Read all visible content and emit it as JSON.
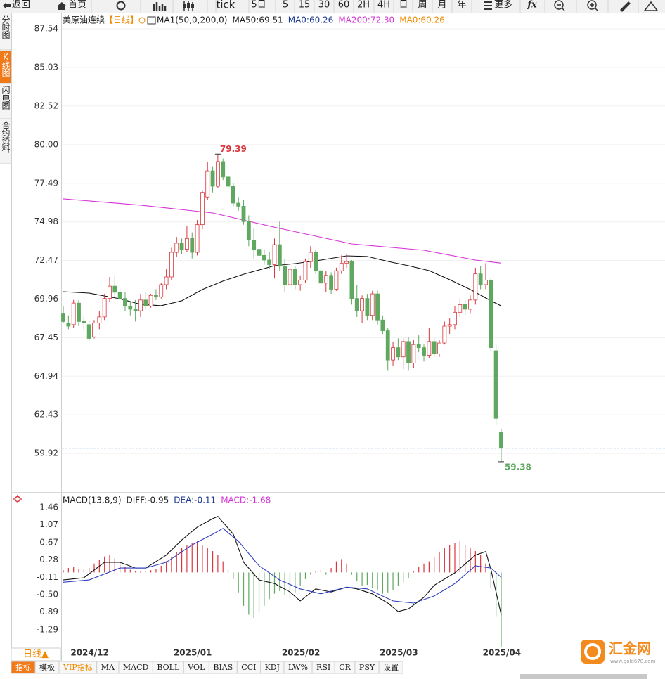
{
  "toolbar": {
    "back": "返回",
    "home": "首页",
    "periods": [
      "tick",
      "5日",
      "5",
      "15",
      "30",
      "60",
      "2H",
      "4H",
      "日",
      "周",
      "月",
      "年"
    ],
    "more": "更多",
    "fx": "fx"
  },
  "sidebar": [
    "分时图",
    "K线图",
    "闪电图",
    "合约资料"
  ],
  "chart_data": [
    {
      "type": "candlestick",
      "title": "美原油连续",
      "period": "【日线】",
      "legend": [
        {
          "text": "MA1(50,0,200,0)",
          "color": "#222222"
        },
        {
          "text": "MA50:69.51",
          "color": "#222222"
        },
        {
          "text": "MA0:60.26",
          "color": "#1f3a93"
        },
        {
          "text": "MA200:72.30",
          "color": "#d633d6"
        },
        {
          "text": "MA0:60.26",
          "color": "#f08a00"
        }
      ],
      "up_color": "#d9363e",
      "down_color": "#5fa85f",
      "up_hollow": true,
      "last_color": "#3b7fbf",
      "candles": [
        [
          69.0,
          69.5,
          68.4,
          68.5
        ],
        [
          68.4,
          68.9,
          68.0,
          68.2
        ],
        [
          68.3,
          69.9,
          68.1,
          69.7
        ],
        [
          69.7,
          69.9,
          68.2,
          68.5
        ],
        [
          68.5,
          68.9,
          67.9,
          68.4
        ],
        [
          68.3,
          68.6,
          67.2,
          67.4
        ],
        [
          67.5,
          68.6,
          67.4,
          68.4
        ],
        [
          68.4,
          69.2,
          68.0,
          68.8
        ],
        [
          68.8,
          70.3,
          68.6,
          70.0
        ],
        [
          70.0,
          71.4,
          69.8,
          70.8
        ],
        [
          70.8,
          71.5,
          70.1,
          70.4
        ],
        [
          70.4,
          70.6,
          69.9,
          70.0
        ],
        [
          70.0,
          70.4,
          69.2,
          69.5
        ],
        [
          69.5,
          69.8,
          68.9,
          69.3
        ],
        [
          69.3,
          69.9,
          68.5,
          69.2
        ],
        [
          69.2,
          70.3,
          68.8,
          69.9
        ],
        [
          69.9,
          70.4,
          69.3,
          69.5
        ],
        [
          69.5,
          70.3,
          69.4,
          70.2
        ],
        [
          70.2,
          70.6,
          69.9,
          70.1
        ],
        [
          70.1,
          71.0,
          70.0,
          70.9
        ],
        [
          70.9,
          71.9,
          70.6,
          71.4
        ],
        [
          71.4,
          73.3,
          71.2,
          73.0
        ],
        [
          73.0,
          74.0,
          72.7,
          73.6
        ],
        [
          73.6,
          73.9,
          72.9,
          73.2
        ],
        [
          73.2,
          74.7,
          73.0,
          73.9
        ],
        [
          73.9,
          74.3,
          72.6,
          73.0
        ],
        [
          73.0,
          75.1,
          72.8,
          74.8
        ],
        [
          74.8,
          77.0,
          74.5,
          76.9
        ],
        [
          76.6,
          78.9,
          76.4,
          78.3
        ],
        [
          78.3,
          78.6,
          76.9,
          77.3
        ],
        [
          77.3,
          79.39,
          77.2,
          78.9
        ],
        [
          78.9,
          79.1,
          77.7,
          77.9
        ],
        [
          77.9,
          78.2,
          77.0,
          77.3
        ],
        [
          77.3,
          77.5,
          76.0,
          76.2
        ],
        [
          76.2,
          76.6,
          75.7,
          76.0
        ],
        [
          76.0,
          76.4,
          74.8,
          75.0
        ],
        [
          75.0,
          75.4,
          73.4,
          73.8
        ],
        [
          73.8,
          74.6,
          72.6,
          73.2
        ],
        [
          73.2,
          73.9,
          72.4,
          72.8
        ],
        [
          72.8,
          73.2,
          72.2,
          72.5
        ],
        [
          72.5,
          73.0,
          71.9,
          72.2
        ],
        [
          72.2,
          73.9,
          71.3,
          73.5
        ],
        [
          73.5,
          75.0,
          71.8,
          72.1
        ],
        [
          72.1,
          72.6,
          70.4,
          70.9
        ],
        [
          70.9,
          72.3,
          70.6,
          71.9
        ],
        [
          71.9,
          72.1,
          70.6,
          70.9
        ],
        [
          70.9,
          71.5,
          70.5,
          71.2
        ],
        [
          71.2,
          72.6,
          71.0,
          72.4
        ],
        [
          72.4,
          73.4,
          72.0,
          73.0
        ],
        [
          73.0,
          73.2,
          71.6,
          71.8
        ],
        [
          71.8,
          72.1,
          70.7,
          71.0
        ],
        [
          71.0,
          71.8,
          70.4,
          71.5
        ],
        [
          71.5,
          71.7,
          70.3,
          70.6
        ],
        [
          70.6,
          72.0,
          70.5,
          71.8
        ],
        [
          71.8,
          72.8,
          71.6,
          72.3
        ],
        [
          72.3,
          72.9,
          72.0,
          72.4
        ],
        [
          72.4,
          72.5,
          69.6,
          70.0
        ],
        [
          70.0,
          70.9,
          68.8,
          69.2
        ],
        [
          69.2,
          70.2,
          68.4,
          70.0
        ],
        [
          70.0,
          70.3,
          68.6,
          68.9
        ],
        [
          68.9,
          70.5,
          68.6,
          70.3
        ],
        [
          70.3,
          70.5,
          68.3,
          68.6
        ],
        [
          68.6,
          68.9,
          67.7,
          67.9
        ],
        [
          67.9,
          68.1,
          65.3,
          66.0
        ],
        [
          66.0,
          67.2,
          65.6,
          66.8
        ],
        [
          66.8,
          67.4,
          66.0,
          66.2
        ],
        [
          66.2,
          67.4,
          65.4,
          67.2
        ],
        [
          67.2,
          67.5,
          65.3,
          65.8
        ],
        [
          65.8,
          67.3,
          65.5,
          67.0
        ],
        [
          67.0,
          67.6,
          66.5,
          66.8
        ],
        [
          66.8,
          67.0,
          65.9,
          66.3
        ],
        [
          66.3,
          68.1,
          66.1,
          67.2
        ],
        [
          67.2,
          67.4,
          66.2,
          66.4
        ],
        [
          66.4,
          67.3,
          66.2,
          67.1
        ],
        [
          67.1,
          68.5,
          67.0,
          68.2
        ],
        [
          68.2,
          68.7,
          67.7,
          68.3
        ],
        [
          68.3,
          69.5,
          68.0,
          69.1
        ],
        [
          69.1,
          70.0,
          68.8,
          69.6
        ],
        [
          69.6,
          69.9,
          68.9,
          69.3
        ],
        [
          69.3,
          70.2,
          69.0,
          69.9
        ],
        [
          69.9,
          72.0,
          69.6,
          71.6
        ],
        [
          71.6,
          72.1,
          70.6,
          70.9
        ],
        [
          70.9,
          72.3,
          70.6,
          71.2
        ],
        [
          71.2,
          71.3,
          66.6,
          66.8
        ],
        [
          66.6,
          67.0,
          61.8,
          62.2
        ],
        [
          61.3,
          61.5,
          59.38,
          60.26
        ]
      ],
      "lines": [
        {
          "color": "#111111",
          "x": [
            0,
            5,
            11,
            15,
            19,
            23,
            27,
            31,
            35,
            41,
            45,
            50,
            55,
            59,
            63,
            67,
            71,
            75,
            79,
            83,
            85
          ],
          "values": [
            70.44,
            70.35,
            69.98,
            69.62,
            69.53,
            69.85,
            70.58,
            71.13,
            71.58,
            72.13,
            72.27,
            72.5,
            72.77,
            72.73,
            72.41,
            72.13,
            71.81,
            71.22,
            70.58,
            69.85,
            69.51
          ]
        },
        {
          "color": "#d633d6",
          "x": [
            0,
            15,
            29,
            42,
            56,
            70,
            80,
            85
          ],
          "values": [
            76.48,
            76.07,
            75.56,
            74.56,
            73.55,
            73.14,
            72.5,
            72.3
          ]
        }
      ],
      "xlim": [
        -0.55,
        116.8
      ],
      "ylim": [
        57.41,
        88.5
      ],
      "yticks": [
        87.54,
        85.03,
        82.52,
        {
          "value": 80,
          "label": "80.00"
        },
        77.49,
        74.98,
        72.47,
        69.96,
        67.45,
        64.94,
        62.43,
        59.92
      ],
      "grid": true
    },
    {
      "type": "macd",
      "title": "MACD(13,8,9)",
      "legend": [
        {
          "text": "DIFF:-0.95",
          "color": "#222222"
        },
        {
          "text": "DEA:-0.11",
          "color": "#1f3a93"
        },
        {
          "text": "MACD:-1.68",
          "color": "#d633d6"
        }
      ],
      "pos_color": "#d9363e",
      "neg_color": "#5fa85f",
      "histogram": [
        0.05,
        0.1,
        0.12,
        0.08,
        0.06,
        0.1,
        0.2,
        0.28,
        0.36,
        0.4,
        0.32,
        0.22,
        0.12,
        0.06,
        0.03,
        0.02,
        0.04,
        0.05,
        0.08,
        0.15,
        0.25,
        0.35,
        0.45,
        0.55,
        0.62,
        0.66,
        0.7,
        0.62,
        0.55,
        0.48,
        0.4,
        0.25,
        0.05,
        -0.15,
        -0.45,
        -0.75,
        -0.95,
        -1.02,
        -0.9,
        -0.75,
        -0.6,
        -0.48,
        -0.42,
        -0.5,
        -0.58,
        -0.45,
        -0.3,
        -0.15,
        -0.05,
        0.02,
        0.05,
        -0.05,
        0.1,
        0.25,
        0.3,
        0.2,
        -0.05,
        -0.2,
        -0.3,
        -0.28,
        -0.35,
        -0.4,
        -0.48,
        -0.45,
        -0.4,
        -0.3,
        -0.22,
        -0.12,
        0.02,
        0.12,
        0.2,
        0.25,
        0.35,
        0.45,
        0.55,
        0.62,
        0.66,
        0.7,
        0.62,
        0.55,
        0.48,
        0.4,
        0.2,
        -0.35,
        -1.0,
        -1.68
      ],
      "lines": [
        {
          "color": "#111111",
          "x": [
            0,
            4,
            8,
            11,
            14,
            16,
            20,
            23,
            26,
            29,
            30,
            33,
            35,
            38,
            41,
            44,
            46,
            49,
            52,
            55,
            57,
            60,
            63,
            65,
            67,
            70,
            72,
            76,
            80,
            82,
            83,
            85
          ],
          "values": [
            -0.17,
            -0.12,
            0.23,
            0.23,
            0.1,
            0.1,
            0.39,
            0.73,
            1.02,
            1.21,
            1.26,
            0.86,
            0.23,
            -0.17,
            -0.25,
            -0.44,
            -0.64,
            -0.37,
            -0.44,
            -0.33,
            -0.37,
            -0.48,
            -0.69,
            -0.88,
            -0.82,
            -0.56,
            -0.29,
            -0.01,
            0.39,
            0.47,
            0.07,
            -0.95
          ]
        },
        {
          "color": "#2f3fbf",
          "x": [
            0,
            5,
            11,
            16,
            20,
            25,
            29,
            31,
            34,
            38,
            42,
            46,
            50,
            55,
            59,
            64,
            68,
            72,
            76,
            80,
            83,
            85
          ],
          "values": [
            -0.22,
            -0.17,
            0.1,
            0.1,
            0.23,
            0.62,
            0.86,
            0.99,
            0.7,
            0.15,
            -0.17,
            -0.37,
            -0.48,
            -0.33,
            -0.37,
            -0.64,
            -0.69,
            -0.53,
            -0.25,
            0.15,
            0.1,
            -0.11
          ]
        }
      ],
      "xlim": [
        -0.55,
        116.8
      ],
      "ylim": [
        -1.67,
        1.73
      ],
      "yticks": [
        1.46,
        1.07,
        0.67,
        0.28,
        -0.11,
        {
          "value": -0.5,
          "label": "-0.50"
        },
        -0.89,
        -1.29
      ],
      "xticks": [
        {
          "value": 1,
          "label": "2024/12"
        },
        {
          "value": 21,
          "label": "2025/01"
        },
        {
          "value": 42,
          "label": "2025/02"
        },
        {
          "value": 61,
          "label": "2025/03"
        },
        {
          "value": 81,
          "label": "2025/04"
        }
      ]
    }
  ],
  "footer": {
    "period": "日线▲",
    "tabs": [
      "指标",
      "模板",
      "VIP指标",
      "MA",
      "MACD",
      "BOLL",
      "VOL",
      "BIAS",
      "CCI",
      "KDJ",
      "LW%",
      "RSI",
      "CR",
      "PSY",
      "设置"
    ],
    "logo": "汇金网",
    "url": "www.gold678.com"
  }
}
